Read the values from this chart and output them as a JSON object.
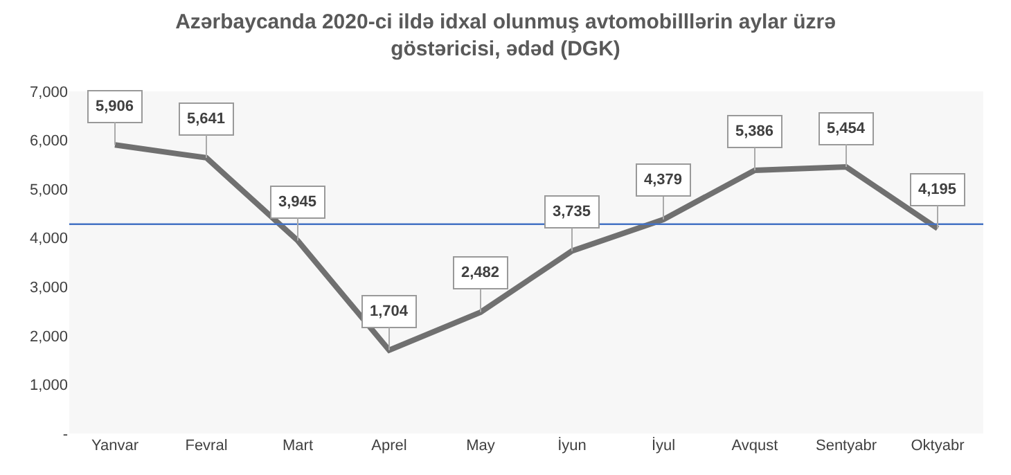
{
  "chart_data": {
    "type": "line",
    "title": "Azərbaycanda 2020-ci ildə idxal olunmuş avtomobilllərin aylar üzrə göstəricisi, ədəd (DGK)",
    "categories": [
      "Yanvar",
      "Fevral",
      "Mart",
      "Aprel",
      "May",
      "İyun",
      "İyul",
      "Avqust",
      "Sentyabr",
      "Oktyabr"
    ],
    "series": [
      {
        "color": "#707070",
        "values": [
          5906,
          5641,
          3945,
          1704,
          2482,
          3735,
          4379,
          5386,
          5454,
          4195
        ],
        "value_labels": [
          "5,906",
          "5,641",
          "3,945",
          "1,704",
          "2,482",
          "3,735",
          "4,379",
          "5,386",
          "5,454",
          "4,195"
        ]
      }
    ],
    "ylim": [
      0,
      7000
    ],
    "yticks": [
      {
        "value": 0,
        "label": "-"
      },
      {
        "value": 1000,
        "label": "1,000"
      },
      {
        "value": 2000,
        "label": "2,000"
      },
      {
        "value": 3000,
        "label": "3,000"
      },
      {
        "value": 4000,
        "label": "4,000"
      },
      {
        "value": 5000,
        "label": "5,000"
      },
      {
        "value": 6000,
        "label": "6,000"
      },
      {
        "value": 7000,
        "label": "7,000"
      }
    ],
    "ref_lines": [
      {
        "axis": "y",
        "value": 4283,
        "color": "#4472c4"
      }
    ],
    "grid": false,
    "marker": "none",
    "line_style": "solid"
  }
}
